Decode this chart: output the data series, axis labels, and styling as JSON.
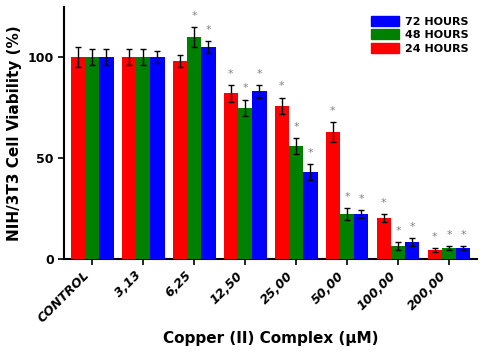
{
  "categories": [
    "CONTROL",
    "3,13",
    "6,25",
    "12,50",
    "25,00",
    "50,00",
    "100,00",
    "200,00"
  ],
  "series": {
    "24 HOURS": {
      "color": "#FF0000",
      "values": [
        100,
        100,
        98,
        82,
        76,
        63,
        20,
        4
      ],
      "errors": [
        5,
        4,
        3,
        4,
        4,
        5,
        2,
        1
      ]
    },
    "48 HOURS": {
      "color": "#008000",
      "values": [
        100,
        100,
        110,
        75,
        56,
        22,
        6,
        5
      ],
      "errors": [
        4,
        4,
        5,
        4,
        4,
        3,
        2,
        1
      ]
    },
    "72 HOURS": {
      "color": "#0000FF",
      "values": [
        100,
        100,
        105,
        83,
        43,
        22,
        8,
        5
      ],
      "errors": [
        4,
        3,
        3,
        3,
        4,
        2,
        2,
        1
      ]
    }
  },
  "series_order": [
    "24 HOURS",
    "48 HOURS",
    "72 HOURS"
  ],
  "legend_order": [
    "72 HOURS",
    "48 HOURS",
    "24 HOURS"
  ],
  "ylabel": "NIH/3T3 Cell Viability (%)",
  "xlabel": "Copper (II) Complex (μM)",
  "ylim": [
    0,
    125
  ],
  "yticks": [
    0,
    50,
    100
  ],
  "bar_width": 0.28,
  "significance_markers": {
    "24 HOURS": {
      "12,50": "*",
      "25,00": "*",
      "50,00": "*",
      "100,00": "*",
      "200,00": "*"
    },
    "48 HOURS": {
      "6,25": "*",
      "12,50": "*",
      "25,00": "*",
      "50,00": "*",
      "100,00": "*",
      "200,00": "*"
    },
    "72 HOURS": {
      "6,25": "*",
      "12,50": "*",
      "25,00": "*",
      "50,00": "*",
      "100,00": "*",
      "200,00": "*"
    }
  },
  "background_color": "#FFFFFF",
  "axis_fontsize": 11,
  "tick_fontsize": 9,
  "legend_fontsize": 8
}
